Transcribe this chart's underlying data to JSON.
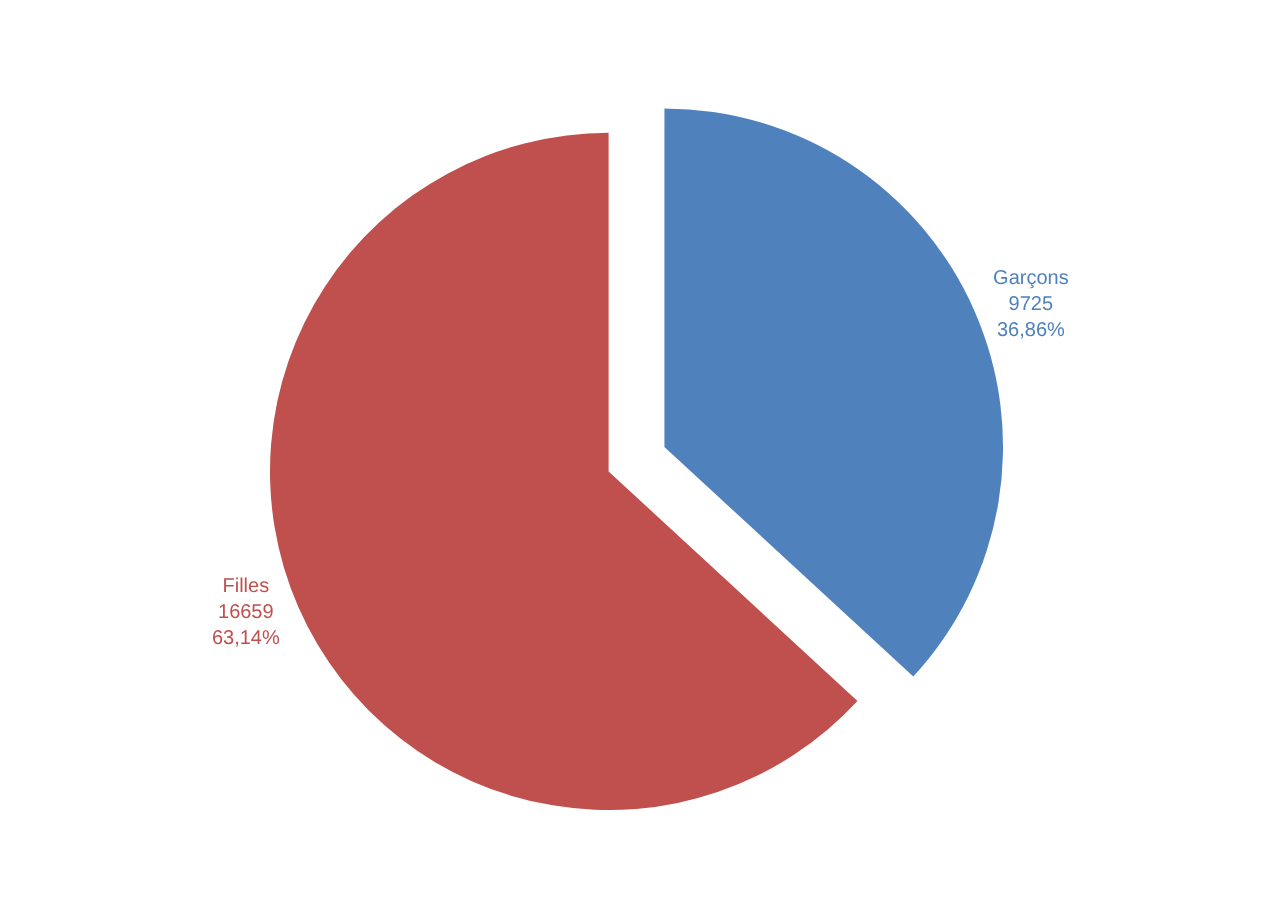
{
  "chart_data": {
    "type": "pie",
    "categories": [
      "Garçons",
      "Filles"
    ],
    "values": [
      9725,
      16659
    ],
    "colors": [
      "#4f81bd",
      "#c0504d"
    ],
    "value_labels": [
      "9725\n36,86%",
      "16659\n63,14%"
    ],
    "legend": false
  }
}
